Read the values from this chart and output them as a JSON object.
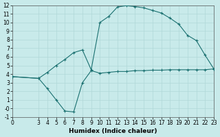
{
  "xlabel": "Humidex (Indice chaleur)",
  "background_color": "#c8eaea",
  "line_color": "#1a7070",
  "grid_color": "#b0d8d8",
  "xlim": [
    0,
    23
  ],
  "ylim": [
    -1,
    12
  ],
  "xticks": [
    0,
    3,
    4,
    5,
    6,
    7,
    8,
    9,
    10,
    11,
    12,
    13,
    14,
    15,
    16,
    17,
    18,
    19,
    20,
    21,
    22,
    23
  ],
  "yticks": [
    -1,
    0,
    1,
    2,
    3,
    4,
    5,
    6,
    7,
    8,
    9,
    10,
    11,
    12
  ],
  "ytick_labels": [
    "-1",
    "-0",
    "1",
    "2",
    "3",
    "4",
    "5",
    "6",
    "7",
    "8",
    "9",
    "10",
    "11",
    "12"
  ],
  "upper_x": [
    0,
    3,
    4,
    5,
    6,
    7,
    8,
    9,
    10,
    11,
    12,
    13,
    14,
    15,
    16,
    17,
    18,
    19,
    20,
    21,
    22,
    23
  ],
  "upper_y": [
    3.7,
    3.5,
    4.2,
    5.0,
    5.7,
    6.5,
    6.8,
    4.5,
    10.0,
    10.7,
    11.8,
    11.95,
    11.85,
    11.7,
    11.4,
    11.1,
    10.5,
    9.8,
    8.5,
    7.9,
    6.2,
    4.6
  ],
  "lower_x": [
    0,
    3,
    4,
    5,
    6,
    7,
    8,
    9,
    10,
    11,
    12,
    13,
    14,
    15,
    16,
    17,
    18,
    19,
    20,
    21,
    22,
    23
  ],
  "lower_y": [
    3.7,
    3.5,
    2.3,
    1.0,
    -0.3,
    -0.4,
    3.0,
    4.4,
    4.1,
    4.2,
    4.3,
    4.3,
    4.4,
    4.4,
    4.45,
    4.45,
    4.5,
    4.5,
    4.5,
    4.5,
    4.5,
    4.6
  ]
}
